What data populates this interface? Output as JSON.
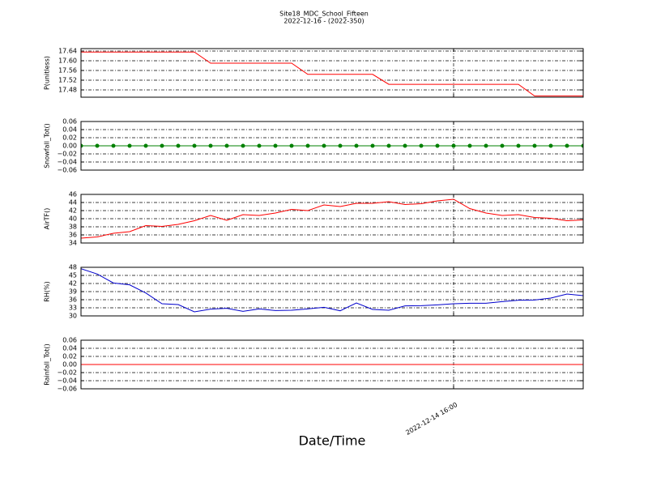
{
  "figure": {
    "title": "Site18_MDC_School_Fifteen",
    "subtitle": "2022-12-16 - (2022-350)",
    "xlabel": "Date/Time",
    "xlim": [
      0,
      31
    ],
    "xticks": [
      {
        "value": 23,
        "label": "2022-12-14 16:00"
      }
    ]
  },
  "chart_data": [
    {
      "type": "line",
      "y_label": "P(unitless)",
      "ylim": [
        17.45,
        17.65
      ],
      "yticks": [
        17.48,
        17.52,
        17.56,
        {
          "value": 17.6,
          "label": "17.60"
        },
        17.64
      ],
      "grid": true,
      "x": [
        0,
        1,
        2,
        3,
        4,
        5,
        6,
        7,
        8,
        9,
        10,
        11,
        12,
        13,
        14,
        15,
        16,
        17,
        18,
        19,
        20,
        21,
        22,
        23,
        24,
        25,
        26,
        27,
        28,
        29,
        30,
        31
      ],
      "series": [
        {
          "color": "#ff0000",
          "values": [
            17.636,
            17.636,
            17.636,
            17.636,
            17.636,
            17.636,
            17.636,
            17.636,
            17.59,
            17.59,
            17.59,
            17.59,
            17.59,
            17.59,
            17.544,
            17.544,
            17.544,
            17.544,
            17.544,
            17.503,
            17.503,
            17.503,
            17.503,
            17.503,
            17.503,
            17.503,
            17.503,
            17.503,
            17.455,
            17.455,
            17.455,
            17.455
          ]
        }
      ]
    },
    {
      "type": "line",
      "y_label": "Snowfall_Tot()",
      "ylim": [
        -0.06,
        0.06
      ],
      "markers": true,
      "yticks": [
        {
          "value": -0.06,
          "label": "−0.06"
        },
        {
          "value": -0.04,
          "label": "−0.04"
        },
        {
          "value": -0.02,
          "label": "−0.02"
        },
        {
          "value": 0,
          "label": "0.00"
        },
        0.02,
        0.04,
        0.06
      ],
      "grid": true,
      "x": [
        0,
        1,
        2,
        3,
        4,
        5,
        6,
        7,
        8,
        9,
        10,
        11,
        12,
        13,
        14,
        15,
        16,
        17,
        18,
        19,
        20,
        21,
        22,
        23,
        24,
        25,
        26,
        27,
        28,
        29,
        30,
        31
      ],
      "series": [
        {
          "color": "#008000",
          "values": [
            0,
            0,
            0,
            0,
            0,
            0,
            0,
            0,
            0,
            0,
            0,
            0,
            0,
            0,
            0,
            0,
            0,
            0,
            0,
            0,
            0,
            0,
            0,
            0,
            0,
            0,
            0,
            0,
            0,
            0,
            0,
            0
          ]
        }
      ]
    },
    {
      "type": "line",
      "y_label": "AirTF()",
      "ylim": [
        34,
        46
      ],
      "yticks": [
        34,
        36,
        38,
        40,
        42,
        44,
        46
      ],
      "grid": true,
      "x": [
        0,
        1,
        2,
        3,
        4,
        5,
        6,
        7,
        8,
        9,
        10,
        11,
        12,
        13,
        14,
        15,
        16,
        17,
        18,
        19,
        20,
        21,
        22,
        23,
        24,
        25,
        26,
        27,
        28,
        29,
        30,
        31
      ],
      "series": [
        {
          "color": "#ff0000",
          "values": [
            35.2,
            35.5,
            36.4,
            36.8,
            38.3,
            38.1,
            38.6,
            39.5,
            40.8,
            39.6,
            41.0,
            40.8,
            41.4,
            42.3,
            42.0,
            43.4,
            43.0,
            43.8,
            43.8,
            44.2,
            43.5,
            43.7,
            44.4,
            44.8,
            42.5,
            41.4,
            40.8,
            41.0,
            40.3,
            40.1,
            39.5,
            39.7
          ]
        }
      ]
    },
    {
      "type": "line",
      "y_label": "RH(%)",
      "ylim": [
        30,
        48
      ],
      "yticks": [
        30,
        33,
        36,
        39,
        42,
        45,
        48
      ],
      "grid": true,
      "x": [
        0,
        1,
        2,
        3,
        4,
        5,
        6,
        7,
        8,
        9,
        10,
        11,
        12,
        13,
        14,
        15,
        16,
        17,
        18,
        19,
        20,
        21,
        22,
        23,
        24,
        25,
        26,
        27,
        28,
        29,
        30,
        31
      ],
      "series": [
        {
          "color": "#0000cc",
          "values": [
            47.5,
            45.5,
            42.2,
            41.5,
            38.5,
            34.5,
            34.2,
            31.5,
            32.5,
            32.8,
            31.7,
            32.6,
            32.0,
            32.1,
            32.6,
            33.2,
            31.9,
            34.8,
            32.4,
            32.1,
            33.7,
            33.8,
            34.1,
            34.5,
            34.7,
            34.7,
            35.3,
            35.8,
            35.9,
            36.6,
            38.1,
            37.5
          ]
        }
      ]
    },
    {
      "type": "line",
      "y_label": "Rainfall_Tot()",
      "ylim": [
        -0.06,
        0.06
      ],
      "yticks": [
        {
          "value": -0.06,
          "label": "−0.06"
        },
        {
          "value": -0.04,
          "label": "−0.04"
        },
        {
          "value": -0.02,
          "label": "−0.02"
        },
        {
          "value": 0,
          "label": "0.00"
        },
        0.02,
        0.04,
        0.06
      ],
      "grid": true,
      "x": [
        0,
        1,
        2,
        3,
        4,
        5,
        6,
        7,
        8,
        9,
        10,
        11,
        12,
        13,
        14,
        15,
        16,
        17,
        18,
        19,
        20,
        21,
        22,
        23,
        24,
        25,
        26,
        27,
        28,
        29,
        30,
        31
      ],
      "series": [
        {
          "color": "#ff0000",
          "values": [
            0,
            0,
            0,
            0,
            0,
            0,
            0,
            0,
            0,
            0,
            0,
            0,
            0,
            0,
            0,
            0,
            0,
            0,
            0,
            0,
            0,
            0,
            0,
            0,
            0,
            0,
            0,
            0,
            0,
            0,
            0,
            0
          ]
        }
      ]
    }
  ]
}
